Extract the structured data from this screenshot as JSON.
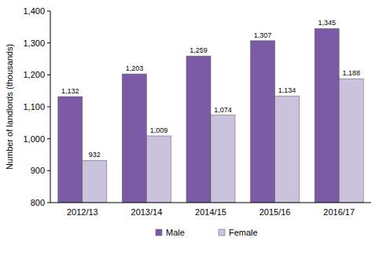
{
  "chart_data": {
    "type": "bar",
    "y_label": "Number of landlords (thousands)",
    "categories": [
      "2012/13",
      "2013/14",
      "2014/15",
      "2015/16",
      "2016/17"
    ],
    "series": [
      {
        "name": "Male",
        "color": "#7b5aa6",
        "values": [
          1132,
          1203,
          1259,
          1307,
          1345
        ],
        "value_labels": [
          "1,132",
          "1,203",
          "1,259",
          "1,307",
          "1,345"
        ]
      },
      {
        "name": "Female",
        "color": "#cbc2dd",
        "values": [
          932,
          1009,
          1074,
          1134,
          1188
        ],
        "value_labels": [
          "932",
          "1,009",
          "1,074",
          "1,134",
          "1,188"
        ]
      }
    ],
    "ylim": [
      800,
      1400
    ],
    "yticks": [
      800,
      900,
      {
        "value": 1000,
        "label": "1,000"
      },
      {
        "value": 1100,
        "label": "1,100"
      },
      {
        "value": 1200,
        "label": "1,200"
      },
      {
        "value": 1300,
        "label": "1,300"
      },
      {
        "value": 1400,
        "label": "1,400"
      }
    ],
    "grid": false,
    "legend": "bottom",
    "data_labels": true
  }
}
